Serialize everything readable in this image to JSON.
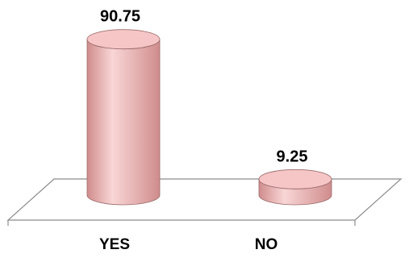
{
  "chart_data": {
    "type": "bar",
    "style": "3d-cylinder",
    "categories": [
      "YES",
      "NO"
    ],
    "values": [
      90.75,
      9.25
    ],
    "data_labels": [
      "90.75",
      "9.25"
    ],
    "title": "",
    "xlabel": "",
    "ylabel": "",
    "ylim": [
      0,
      100
    ],
    "grid": false,
    "legend": "none",
    "colors": {
      "bar_fill": "#f2b8b8",
      "bar_dark": "#d08c8c",
      "bar_light": "#f9d6d6",
      "top_fill": "#f6c6c6",
      "outline": "#9a6a6a",
      "floor_stroke": "#8c8c8c"
    }
  }
}
